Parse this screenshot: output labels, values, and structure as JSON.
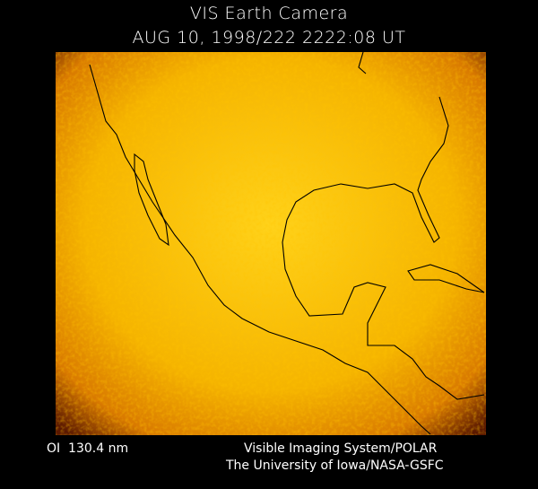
{
  "header": {
    "title": "VIS Earth Camera",
    "datetime": "AUG 10, 1998/222 2222:08 UT"
  },
  "image": {
    "subject": "earth-disk-uv-emission",
    "colormap": [
      "#3a0a00",
      "#b34a00",
      "#e89000",
      "#ffc800",
      "#ffe860"
    ],
    "overlay_color": "#000000"
  },
  "footer": {
    "band": "OI  130.4 nm",
    "instrument": "Visible Imaging System/POLAR",
    "institution": "The University of Iowa/NASA-GSFC"
  }
}
